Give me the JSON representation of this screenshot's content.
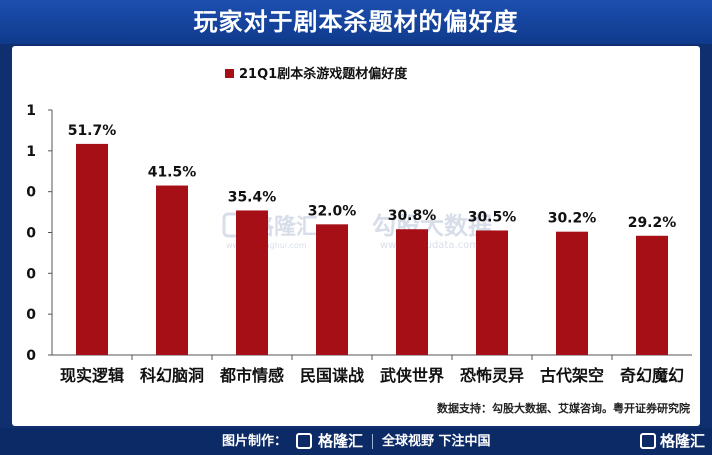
{
  "header": {
    "title": "玩家对于剧本杀题材的偏好度"
  },
  "chart_data": {
    "type": "bar",
    "title": "21Q1剧本杀游戏题材偏好度",
    "legend_label": "21Q1剧本杀游戏题材偏好度",
    "legend_position": "top",
    "categories": [
      "现实逻辑",
      "科幻脑洞",
      "都市情感",
      "民国谍战",
      "武侠世界",
      "恐怖灵异",
      "古代架空",
      "奇幻魔幻"
    ],
    "values": [
      51.7,
      41.5,
      35.4,
      32.0,
      30.8,
      30.5,
      30.2,
      29.2
    ],
    "data_labels": [
      "51.7%",
      "41.5%",
      "35.4%",
      "32.0%",
      "30.8%",
      "30.5%",
      "30.2%",
      "29.2%"
    ],
    "y_tick_labels": [
      "0",
      "0",
      "0",
      "0",
      "0",
      "1",
      "1"
    ],
    "ylim": [
      0,
      60
    ],
    "grid": false,
    "bar_color": "#a50f15",
    "source": "数据支持：勾股大数据、艾媒咨询。粤开证券研究院"
  },
  "watermark": {
    "text1": "格隆汇",
    "text2": "勾股大数据",
    "url1": "www.gelonghui.com",
    "url2": "www.gogudata.com"
  },
  "footer": {
    "credit": "图片制作：",
    "logo": "格隆汇",
    "slogan": "全球视野 下注中国",
    "logo_right": "格隆汇"
  },
  "colors": {
    "header_bg": "#0f3a8c",
    "footer_bg": "#0c2a66",
    "bar": "#a50f15"
  }
}
